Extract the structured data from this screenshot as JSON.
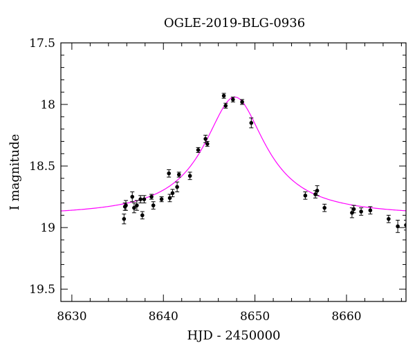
{
  "chart_data": {
    "type": "scatter",
    "title": "OGLE-2019-BLG-0936",
    "xlabel": "HJD - 2450000",
    "ylabel": "I magnitude",
    "xlim": [
      8628.8,
      8666.5
    ],
    "ylim": [
      17.5,
      19.6
    ],
    "y_inverted": true,
    "x_ticks": [
      8630,
      8640,
      8650,
      8660
    ],
    "x_tick_labels": [
      "8630",
      "8640",
      "8650",
      "8660"
    ],
    "y_ticks": [
      17.5,
      18,
      18.5,
      19,
      19.5
    ],
    "y_tick_labels": [
      "17.5",
      "18",
      "18.5",
      "19",
      "19.5"
    ],
    "model_curve": {
      "color": "#ff00ff",
      "baseline_mag": 18.91,
      "peak_mag": 17.94,
      "t0": 8647.8,
      "tE": 3.3
    },
    "series": [
      {
        "points": [
          {
            "x": 8635.7,
            "y": 18.93,
            "err": 0.04
          },
          {
            "x": 8635.8,
            "y": 18.83,
            "err": 0.03
          },
          {
            "x": 8635.9,
            "y": 18.82,
            "err": 0.04
          },
          {
            "x": 8636.6,
            "y": 18.75,
            "err": 0.04
          },
          {
            "x": 8636.8,
            "y": 18.84,
            "err": 0.04
          },
          {
            "x": 8637.1,
            "y": 18.82,
            "err": 0.04
          },
          {
            "x": 8637.5,
            "y": 18.77,
            "err": 0.03
          },
          {
            "x": 8637.7,
            "y": 18.9,
            "err": 0.03
          },
          {
            "x": 8637.9,
            "y": 18.77,
            "err": 0.03
          },
          {
            "x": 8638.7,
            "y": 18.75,
            "err": 0.02
          },
          {
            "x": 8638.9,
            "y": 18.82,
            "err": 0.03
          },
          {
            "x": 8639.8,
            "y": 18.77,
            "err": 0.02
          },
          {
            "x": 8640.6,
            "y": 18.56,
            "err": 0.03
          },
          {
            "x": 8640.7,
            "y": 18.76,
            "err": 0.03
          },
          {
            "x": 8641.0,
            "y": 18.72,
            "err": 0.03
          },
          {
            "x": 8641.5,
            "y": 18.67,
            "err": 0.04
          },
          {
            "x": 8641.7,
            "y": 18.57,
            "err": 0.02
          },
          {
            "x": 8642.9,
            "y": 18.58,
            "err": 0.03
          },
          {
            "x": 8643.8,
            "y": 18.37,
            "err": 0.02
          },
          {
            "x": 8644.6,
            "y": 18.28,
            "err": 0.03
          },
          {
            "x": 8644.8,
            "y": 18.32,
            "err": 0.02
          },
          {
            "x": 8646.6,
            "y": 17.93,
            "err": 0.02
          },
          {
            "x": 8646.8,
            "y": 18.01,
            "err": 0.02
          },
          {
            "x": 8647.6,
            "y": 17.96,
            "err": 0.02
          },
          {
            "x": 8648.6,
            "y": 17.98,
            "err": 0.02
          },
          {
            "x": 8649.6,
            "y": 18.15,
            "err": 0.04
          },
          {
            "x": 8655.5,
            "y": 18.74,
            "err": 0.03
          },
          {
            "x": 8656.6,
            "y": 18.73,
            "err": 0.03
          },
          {
            "x": 8656.8,
            "y": 18.7,
            "err": 0.04
          },
          {
            "x": 8657.6,
            "y": 18.84,
            "err": 0.03
          },
          {
            "x": 8660.6,
            "y": 18.88,
            "err": 0.04
          },
          {
            "x": 8660.8,
            "y": 18.85,
            "err": 0.03
          },
          {
            "x": 8661.6,
            "y": 18.87,
            "err": 0.03
          },
          {
            "x": 8662.6,
            "y": 18.86,
            "err": 0.03
          },
          {
            "x": 8664.6,
            "y": 18.93,
            "err": 0.03
          },
          {
            "x": 8665.6,
            "y": 18.99,
            "err": 0.05
          },
          {
            "x": 8666.5,
            "y": 18.98,
            "err": 0.04
          }
        ]
      }
    ]
  }
}
